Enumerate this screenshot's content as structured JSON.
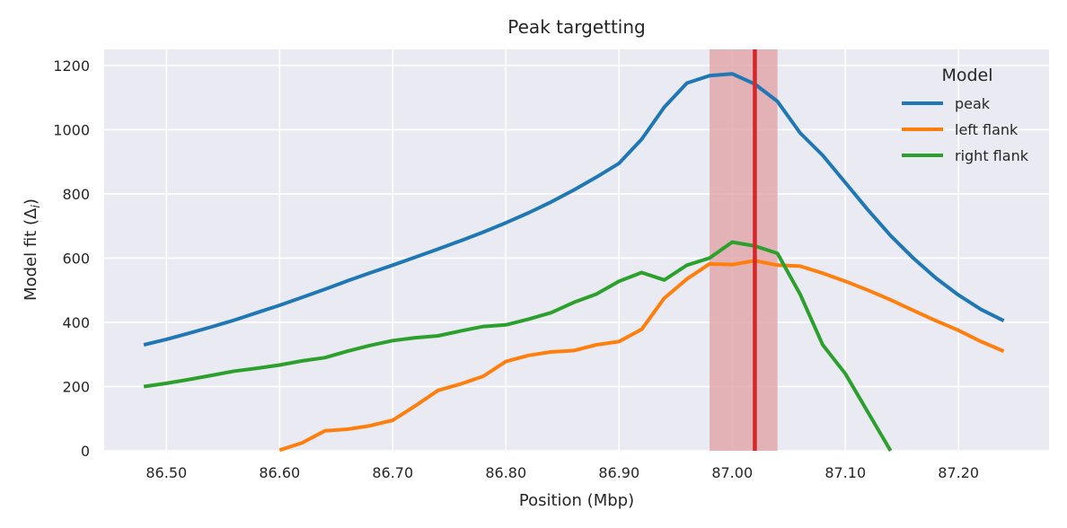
{
  "chart_data": {
    "type": "line",
    "title": "Peak targetting",
    "xlabel": "Position (Mbp)",
    "ylabel": "Model fit (Δ",
    "ylabel_sub": "i",
    "ylabel_end": ")",
    "xlim": [
      86.445,
      87.28
    ],
    "ylim": [
      0,
      1250
    ],
    "xticks": [
      86.5,
      86.6,
      86.7,
      86.8,
      86.9,
      87.0,
      87.1,
      87.2
    ],
    "xtick_labels": [
      "86.50",
      "86.60",
      "86.70",
      "86.80",
      "86.90",
      "87.00",
      "87.10",
      "87.20"
    ],
    "yticks": [
      0,
      200,
      400,
      600,
      800,
      1000,
      1200
    ],
    "ytick_labels": [
      "0",
      "200",
      "400",
      "600",
      "800",
      "1000",
      "1200"
    ],
    "grid": true,
    "legend": {
      "title": "Model",
      "position": "top-right"
    },
    "highlight_span": {
      "x0": 86.98,
      "x1": 87.04,
      "color": "#e0a1a6"
    },
    "highlight_line": {
      "x": 87.02,
      "color": "#d62728"
    },
    "series": [
      {
        "name": "peak",
        "color": "#1f77b4",
        "x": [
          86.48,
          86.5,
          86.52,
          86.54,
          86.56,
          86.58,
          86.6,
          86.62,
          86.64,
          86.66,
          86.68,
          86.7,
          86.72,
          86.74,
          86.76,
          86.78,
          86.8,
          86.82,
          86.84,
          86.86,
          86.88,
          86.9,
          86.92,
          86.94,
          86.96,
          86.98,
          87.0,
          87.02,
          87.04,
          87.06,
          87.08,
          87.1,
          87.12,
          87.14,
          87.16,
          87.18,
          87.2,
          87.22,
          87.24
        ],
        "values": [
          330,
          347,
          366,
          386,
          407,
          430,
          453,
          478,
          503,
          529,
          554,
          578,
          603,
          628,
          654,
          681,
          710,
          741,
          775,
          812,
          852,
          895,
          970,
          1070,
          1145,
          1168,
          1174,
          1142,
          1088,
          990,
          920,
          835,
          750,
          670,
          600,
          538,
          485,
          440,
          405
        ]
      },
      {
        "name": "left flank",
        "color": "#ff7f0e",
        "x": [
          86.6,
          86.62,
          86.64,
          86.66,
          86.68,
          86.7,
          86.72,
          86.74,
          86.76,
          86.78,
          86.8,
          86.82,
          86.84,
          86.86,
          86.88,
          86.9,
          86.92,
          86.94,
          86.96,
          86.98,
          87.0,
          87.02,
          87.04,
          87.06,
          87.08,
          87.1,
          87.12,
          87.14,
          87.16,
          87.18,
          87.2,
          87.22,
          87.24
        ],
        "values": [
          2,
          25,
          62,
          67,
          78,
          95,
          140,
          188,
          208,
          232,
          278,
          297,
          308,
          312,
          330,
          340,
          378,
          475,
          535,
          582,
          580,
          592,
          578,
          575,
          553,
          528,
          500,
          470,
          437,
          405,
          375,
          340,
          310
        ]
      },
      {
        "name": "right flank",
        "color": "#2ca02c",
        "x": [
          86.48,
          86.5,
          86.52,
          86.54,
          86.56,
          86.58,
          86.6,
          86.62,
          86.64,
          86.66,
          86.68,
          86.7,
          86.72,
          86.74,
          86.76,
          86.78,
          86.8,
          86.82,
          86.84,
          86.86,
          86.88,
          86.9,
          86.92,
          86.94,
          86.96,
          86.98,
          87.0,
          87.02,
          87.04,
          87.06,
          87.08,
          87.1,
          87.12,
          87.14
        ],
        "values": [
          200,
          210,
          222,
          235,
          248,
          257,
          267,
          280,
          290,
          310,
          328,
          343,
          352,
          358,
          373,
          387,
          392,
          410,
          430,
          462,
          488,
          528,
          555,
          532,
          578,
          600,
          650,
          638,
          615,
          488,
          330,
          240,
          120,
          0
        ]
      }
    ]
  }
}
